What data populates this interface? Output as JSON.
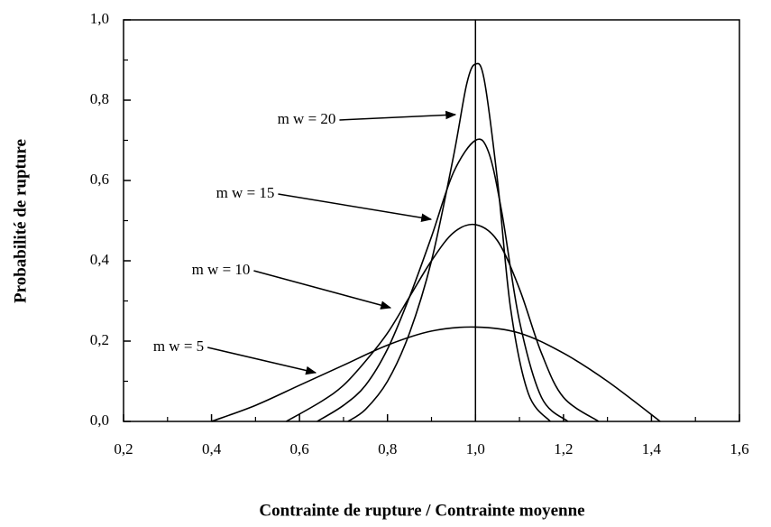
{
  "chart_data": {
    "type": "line",
    "xlabel": "Contrainte de rupture / Contrainte moyenne",
    "ylabel": "Probabilité de rupture",
    "xlim": [
      0.2,
      1.6
    ],
    "ylim": [
      0,
      1.0
    ],
    "xticks": [
      {
        "value": 0.2,
        "label": "0,2"
      },
      {
        "value": 0.4,
        "label": "0,4"
      },
      {
        "value": 0.6,
        "label": "0,6"
      },
      {
        "value": 0.8,
        "label": "0,8"
      },
      {
        "value": 1.0,
        "label": "1,0"
      },
      {
        "value": 1.2,
        "label": "1,2"
      },
      {
        "value": 1.4,
        "label": "1,4"
      },
      {
        "value": 1.6,
        "label": "1,6"
      }
    ],
    "yticks": [
      {
        "value": 0,
        "label": "0,0"
      },
      {
        "value": 0.2,
        "label": "0,2"
      },
      {
        "value": 0.4,
        "label": "0,4"
      },
      {
        "value": 0.6,
        "label": "0,6"
      },
      {
        "value": 0.8,
        "label": "0,8"
      },
      {
        "value": 1.0,
        "label": "1,0"
      }
    ],
    "series": [
      {
        "name": "m w = 20",
        "color": "#000",
        "x": [
          0.71,
          0.75,
          0.8,
          0.85,
          0.9,
          0.95,
          0.98,
          1.0,
          1.02,
          1.05,
          1.08,
          1.12,
          1.17
        ],
        "values": [
          0,
          0.03,
          0.1,
          0.22,
          0.4,
          0.66,
          0.84,
          0.89,
          0.85,
          0.6,
          0.28,
          0.07,
          0
        ]
      },
      {
        "name": "m w = 15",
        "color": "#000",
        "x": [
          0.64,
          0.7,
          0.75,
          0.8,
          0.85,
          0.9,
          0.95,
          1.0,
          1.03,
          1.06,
          1.1,
          1.15,
          1.21
        ],
        "values": [
          0,
          0.04,
          0.09,
          0.18,
          0.31,
          0.46,
          0.62,
          0.7,
          0.67,
          0.52,
          0.25,
          0.06,
          0
        ]
      },
      {
        "name": "m w = 10",
        "color": "#000",
        "x": [
          0.57,
          0.65,
          0.7,
          0.75,
          0.8,
          0.85,
          0.9,
          0.95,
          1.0,
          1.05,
          1.1,
          1.15,
          1.2,
          1.28
        ],
        "values": [
          0,
          0.05,
          0.09,
          0.15,
          0.22,
          0.31,
          0.4,
          0.47,
          0.49,
          0.45,
          0.33,
          0.17,
          0.06,
          0
        ]
      },
      {
        "name": "m w = 5",
        "color": "#000",
        "x": [
          0.4,
          0.5,
          0.6,
          0.7,
          0.8,
          0.9,
          1.0,
          1.1,
          1.2,
          1.3,
          1.42
        ],
        "values": [
          0,
          0.04,
          0.09,
          0.14,
          0.19,
          0.225,
          0.235,
          0.22,
          0.17,
          0.1,
          0
        ]
      }
    ]
  }
}
